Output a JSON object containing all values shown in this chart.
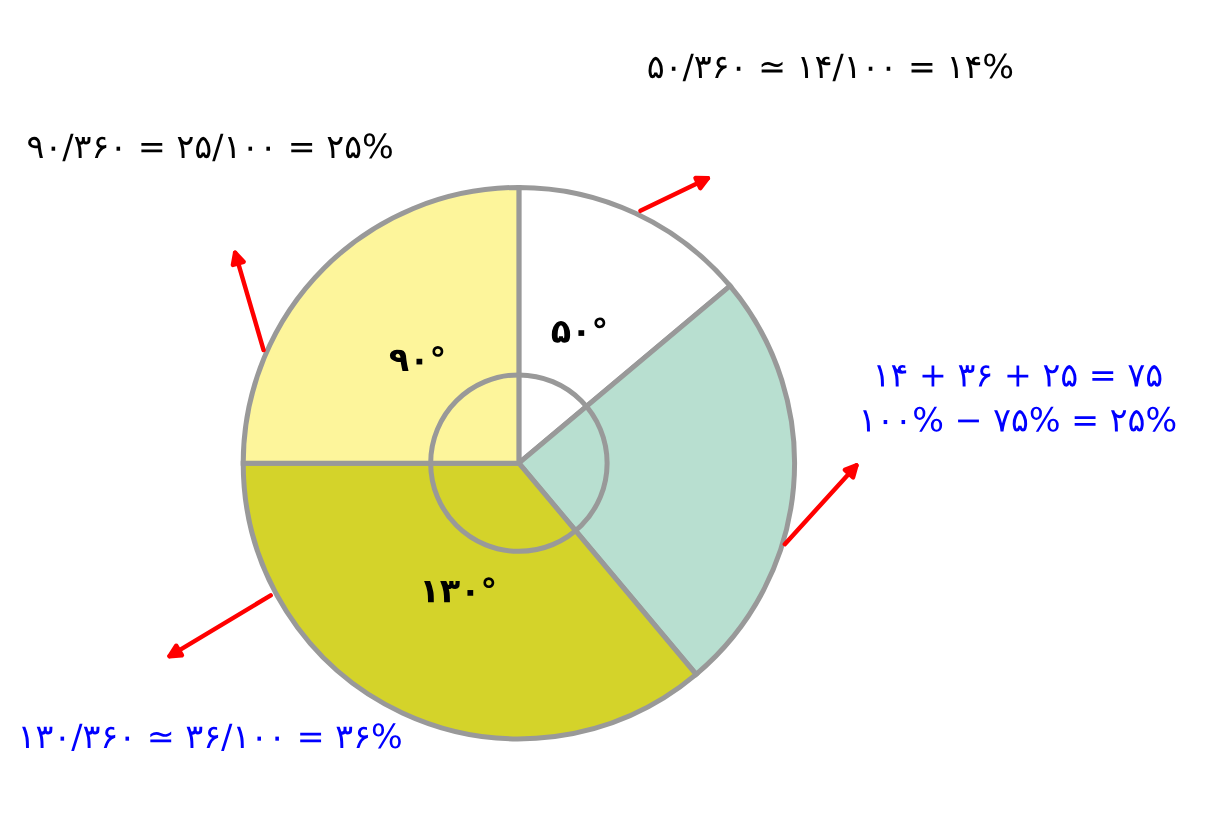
{
  "chart_data": {
    "type": "pie",
    "categories": [
      null,
      null,
      null,
      null
    ],
    "values": [
      50,
      90,
      130,
      90
    ],
    "colors": [
      "#ffffff",
      "#b8dfd0",
      "#d4d32a",
      "#fdf59b"
    ],
    "value_labels": [
      "۵۰°",
      null,
      "۱۳۰°",
      "۹۰°"
    ],
    "annotations": [
      "۵۰/۳۶۰ ≃ ۱۴/۱۰۰ = ۱۴%",
      "۱۴ + ۳۶ + ۲۵ = ۷۵\n۱۰۰% − ۷۵% = ۲۵%",
      "۱۳۰/۳۶۰ ≃ ۳۶/۱۰۰ = ۳۶%",
      "۹۰/۳۶۰ = ۲۵/۱۰۰ = ۲۵%"
    ],
    "legend": false
  }
}
